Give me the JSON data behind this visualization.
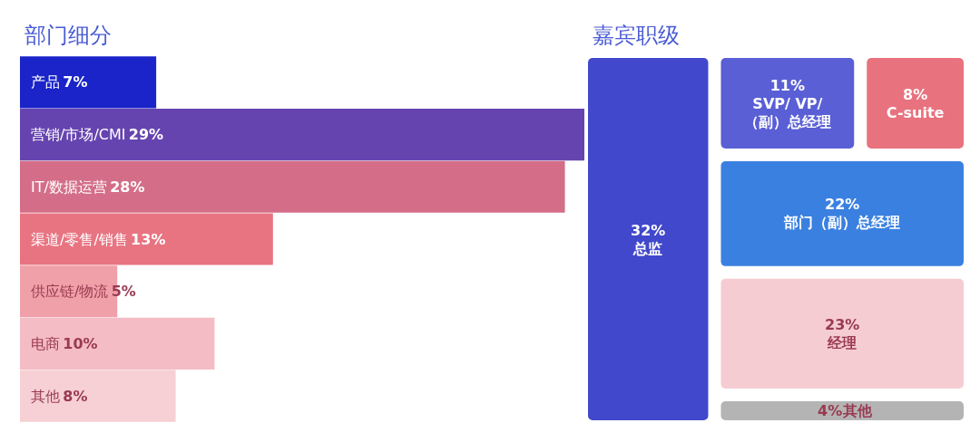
{
  "chart_data": [
    {
      "type": "bar",
      "title": "部门细分",
      "orientation": "horizontal",
      "categories": [
        "产品",
        "营销/市场/CMI",
        "IT/数据运营",
        "渠道/零售/销售",
        "供应链/物流",
        "电商",
        "其他"
      ],
      "values": [
        7,
        29,
        28,
        13,
        5,
        10,
        8
      ],
      "value_labels": [
        "7%",
        "29%",
        "28%",
        "13%",
        "5%",
        "10%",
        "8%"
      ],
      "colors": [
        "#1a24c8",
        "#6644b0",
        "#d46e88",
        "#e87482",
        "#f0a0a8",
        "#f4bcc4",
        "#f6d0d4"
      ],
      "tick_labels": false
    },
    {
      "type": "other",
      "title": "嘉宾职级",
      "categories": [
        "总监",
        "SVP/ VP/\n（副）总经理",
        "C-suite",
        "部门（副）总经理",
        "经理",
        "其他"
      ],
      "values": [
        32,
        11,
        8,
        22,
        23,
        4
      ],
      "value_labels": [
        "32%",
        "11%",
        "8%",
        "22%",
        "23%",
        "4%"
      ],
      "colors": [
        "#4148cc",
        "#5a5fd6",
        "#e8727e",
        "#3a80e0",
        "#f5ccd2",
        "#b4b4b4"
      ]
    }
  ]
}
